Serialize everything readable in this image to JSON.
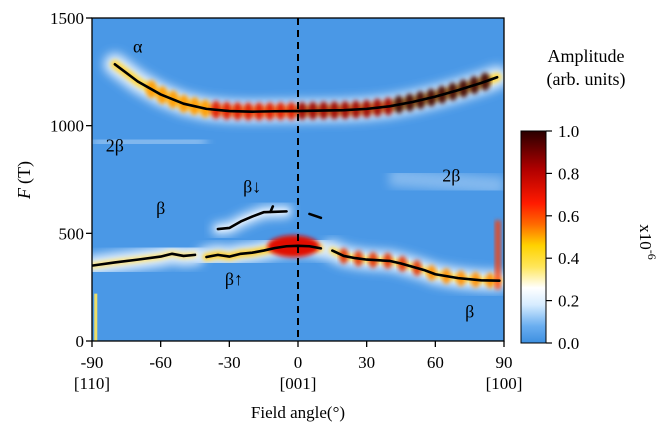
{
  "chart_data": {
    "type": "heatmap",
    "x_axis": {
      "label": "Field angle(°)",
      "range": [
        -90,
        90
      ],
      "ticks": [
        -90,
        -60,
        -30,
        0,
        30,
        60,
        90
      ],
      "tick_labels": [
        "-90",
        "-60",
        "-30",
        "0",
        "30",
        "60",
        "90"
      ],
      "direction_labels": [
        {
          "x": -90,
          "text": "[110]"
        },
        {
          "x": 0,
          "text": "[001]"
        },
        {
          "x": 90,
          "text": "[100]"
        }
      ]
    },
    "y_axis": {
      "label_italic": "F",
      "label_unit": "(T)",
      "range": [
        0,
        1500
      ],
      "ticks": [
        0,
        500,
        1000,
        1500
      ],
      "tick_labels": [
        "0",
        "500",
        "1000",
        "1500"
      ]
    },
    "colorbar": {
      "title_line1": "Amplitude",
      "title_line2": "(arb. units)",
      "range": [
        0.0,
        1.0
      ],
      "ticks": [
        0.0,
        0.2,
        0.4,
        0.6,
        0.8,
        1.0
      ],
      "tick_labels": [
        "0.0",
        "0.2",
        "0.4",
        "0.6",
        "0.8",
        "1.0"
      ],
      "multiplier": "x10",
      "multiplier_exp": "-6",
      "colors": [
        "#3d8fe0",
        "#6aaef0",
        "#d6ecff",
        "#ffffff",
        "#ffe65a",
        "#ffd200",
        "#ff6a00",
        "#ff1a00",
        "#b00000",
        "#2a0000"
      ]
    },
    "background_color": "#4a98e6",
    "annotations": [
      {
        "text": "α",
        "x": -70,
        "y": 1340
      },
      {
        "text": "2β",
        "x": -80,
        "y": 880
      },
      {
        "text": "β",
        "x": -60,
        "y": 590
      },
      {
        "text": "β↓",
        "x": -20,
        "y": 690
      },
      {
        "text": "β↑",
        "x": -28,
        "y": 260
      },
      {
        "text": "2β",
        "x": 67,
        "y": 740
      },
      {
        "text": "β",
        "x": 75,
        "y": 110
      }
    ],
    "series": [
      {
        "curve": "alpha",
        "x": [
          -80,
          -70,
          -60,
          -50,
          -40,
          -30,
          -20,
          -10,
          0,
          10,
          20,
          30,
          40,
          50,
          60,
          70,
          80,
          87
        ],
        "y": [
          1285,
          1205,
          1145,
          1102,
          1078,
          1068,
          1065,
          1067,
          1068,
          1070,
          1072,
          1078,
          1090,
          1110,
          1135,
          1165,
          1198,
          1225
        ]
      },
      {
        "curve": "beta-low-left",
        "x": [
          -90,
          -80,
          -70,
          -60,
          -55,
          -50,
          -45
        ],
        "y": [
          350,
          365,
          378,
          392,
          405,
          395,
          400
        ]
      },
      {
        "curve": "beta-up",
        "x": [
          -40,
          -35,
          -30,
          -25,
          -20,
          -15,
          -10,
          -5,
          0,
          5,
          10
        ],
        "y": [
          390,
          400,
          392,
          405,
          410,
          420,
          432,
          440,
          442,
          440,
          430
        ]
      },
      {
        "curve": "beta-low-right",
        "x": [
          15,
          20,
          25,
          30,
          40,
          45,
          50,
          55,
          60,
          70,
          80,
          88
        ],
        "y": [
          420,
          395,
          385,
          378,
          372,
          360,
          345,
          330,
          310,
          292,
          282,
          280
        ]
      },
      {
        "curve": "beta-down",
        "x": [
          -35,
          -30,
          -25,
          -20,
          -15,
          -10,
          -5
        ],
        "y": [
          520,
          525,
          555,
          578,
          598,
          600,
          602
        ]
      },
      {
        "curve": "beta-down-tick",
        "x": [
          -12,
          -11
        ],
        "y": [
          600,
          625
        ]
      },
      {
        "curve": "beta-down-dash",
        "x": [
          5,
          10
        ],
        "y": [
          590,
          572
        ]
      }
    ],
    "reference_line_x": 0
  }
}
